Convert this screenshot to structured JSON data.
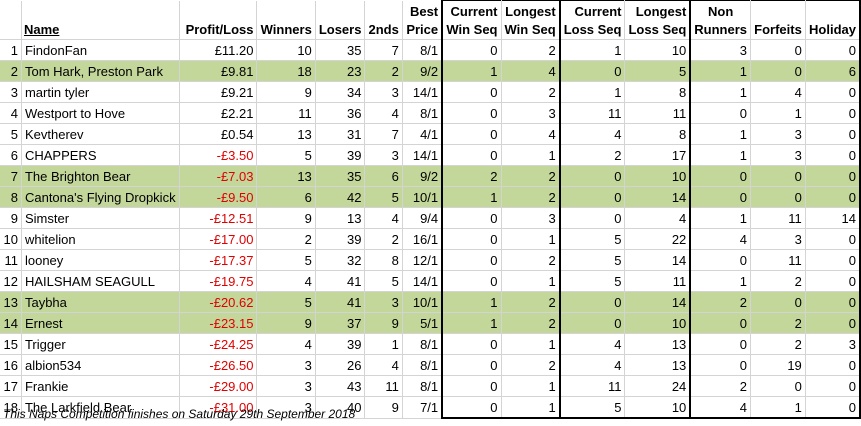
{
  "headers": {
    "rank": "",
    "name": "Name",
    "profit": "Profit/Loss",
    "winners": "Winners",
    "losers": "Losers",
    "seconds": "2nds",
    "best_price": [
      "Best",
      "Price"
    ],
    "cur_win": [
      "Current",
      "Win Seq"
    ],
    "long_win": [
      "Longest",
      "Win Seq"
    ],
    "cur_loss": [
      "Current",
      "Loss Seq"
    ],
    "long_loss": [
      "Longest",
      "Loss Seq"
    ],
    "non_runners": [
      "Non",
      "Runners"
    ],
    "forfeits": "Forfeits",
    "holiday": "Holiday"
  },
  "rows": [
    {
      "rank": "1",
      "name": "FindonFan",
      "profit": "£11.20",
      "winners": "10",
      "losers": "35",
      "seconds": "7",
      "best_price": "8/1",
      "cur_win": "0",
      "long_win": "2",
      "cur_loss": "1",
      "long_loss": "10",
      "non_runners": "3",
      "forfeits": "0",
      "holiday": "0",
      "highlight": false,
      "negative": false
    },
    {
      "rank": "2",
      "name": "Tom Hark, Preston Park",
      "profit": "£9.81",
      "winners": "18",
      "losers": "23",
      "seconds": "2",
      "best_price": "9/2",
      "cur_win": "1",
      "long_win": "4",
      "cur_loss": "0",
      "long_loss": "5",
      "non_runners": "1",
      "forfeits": "0",
      "holiday": "6",
      "highlight": true,
      "negative": false
    },
    {
      "rank": "3",
      "name": "martin tyler",
      "profit": "£9.21",
      "winners": "9",
      "losers": "34",
      "seconds": "3",
      "best_price": "14/1",
      "cur_win": "0",
      "long_win": "2",
      "cur_loss": "1",
      "long_loss": "8",
      "non_runners": "1",
      "forfeits": "4",
      "holiday": "0",
      "highlight": false,
      "negative": false
    },
    {
      "rank": "4",
      "name": "Westport to Hove",
      "profit": "£2.21",
      "winners": "11",
      "losers": "36",
      "seconds": "4",
      "best_price": "8/1",
      "cur_win": "0",
      "long_win": "3",
      "cur_loss": "11",
      "long_loss": "11",
      "non_runners": "0",
      "forfeits": "1",
      "holiday": "0",
      "highlight": false,
      "negative": false
    },
    {
      "rank": "5",
      "name": "Kevtherev",
      "profit": "£0.54",
      "winners": "13",
      "losers": "31",
      "seconds": "7",
      "best_price": "4/1",
      "cur_win": "0",
      "long_win": "4",
      "cur_loss": "4",
      "long_loss": "8",
      "non_runners": "1",
      "forfeits": "3",
      "holiday": "0",
      "highlight": false,
      "negative": false
    },
    {
      "rank": "6",
      "name": "CHAPPERS",
      "profit": "-£3.50",
      "winners": "5",
      "losers": "39",
      "seconds": "3",
      "best_price": "14/1",
      "cur_win": "0",
      "long_win": "1",
      "cur_loss": "2",
      "long_loss": "17",
      "non_runners": "1",
      "forfeits": "3",
      "holiday": "0",
      "highlight": false,
      "negative": true
    },
    {
      "rank": "7",
      "name": "The Brighton Bear",
      "profit": "-£7.03",
      "winners": "13",
      "losers": "35",
      "seconds": "6",
      "best_price": "9/2",
      "cur_win": "2",
      "long_win": "2",
      "cur_loss": "0",
      "long_loss": "10",
      "non_runners": "0",
      "forfeits": "0",
      "holiday": "0",
      "highlight": true,
      "negative": true
    },
    {
      "rank": "8",
      "name": "Cantona's Flying Dropkick",
      "profit": "-£9.50",
      "winners": "6",
      "losers": "42",
      "seconds": "5",
      "best_price": "10/1",
      "cur_win": "1",
      "long_win": "2",
      "cur_loss": "0",
      "long_loss": "14",
      "non_runners": "0",
      "forfeits": "0",
      "holiday": "0",
      "highlight": true,
      "negative": true
    },
    {
      "rank": "9",
      "name": "Simster",
      "profit": "-£12.51",
      "winners": "9",
      "losers": "13",
      "seconds": "4",
      "best_price": "9/4",
      "cur_win": "0",
      "long_win": "3",
      "cur_loss": "0",
      "long_loss": "4",
      "non_runners": "1",
      "forfeits": "11",
      "holiday": "14",
      "highlight": false,
      "negative": true
    },
    {
      "rank": "10",
      "name": "whitelion",
      "profit": "-£17.00",
      "winners": "2",
      "losers": "39",
      "seconds": "2",
      "best_price": "16/1",
      "cur_win": "0",
      "long_win": "1",
      "cur_loss": "5",
      "long_loss": "22",
      "non_runners": "4",
      "forfeits": "3",
      "holiday": "0",
      "highlight": false,
      "negative": true
    },
    {
      "rank": "11",
      "name": "looney",
      "profit": "-£17.37",
      "winners": "5",
      "losers": "32",
      "seconds": "8",
      "best_price": "12/1",
      "cur_win": "0",
      "long_win": "2",
      "cur_loss": "5",
      "long_loss": "14",
      "non_runners": "0",
      "forfeits": "11",
      "holiday": "0",
      "highlight": false,
      "negative": true
    },
    {
      "rank": "12",
      "name": "HAILSHAM SEAGULL",
      "profit": "-£19.75",
      "winners": "4",
      "losers": "41",
      "seconds": "5",
      "best_price": "14/1",
      "cur_win": "0",
      "long_win": "1",
      "cur_loss": "5",
      "long_loss": "11",
      "non_runners": "1",
      "forfeits": "2",
      "holiday": "0",
      "highlight": false,
      "negative": true
    },
    {
      "rank": "13",
      "name": "Taybha",
      "profit": "-£20.62",
      "winners": "5",
      "losers": "41",
      "seconds": "3",
      "best_price": "10/1",
      "cur_win": "1",
      "long_win": "2",
      "cur_loss": "0",
      "long_loss": "14",
      "non_runners": "2",
      "forfeits": "0",
      "holiday": "0",
      "highlight": true,
      "negative": true
    },
    {
      "rank": "14",
      "name": "Ernest",
      "profit": "-£23.15",
      "winners": "9",
      "losers": "37",
      "seconds": "9",
      "best_price": "5/1",
      "cur_win": "1",
      "long_win": "2",
      "cur_loss": "0",
      "long_loss": "10",
      "non_runners": "0",
      "forfeits": "2",
      "holiday": "0",
      "highlight": true,
      "negative": true
    },
    {
      "rank": "15",
      "name": "Trigger",
      "profit": "-£24.25",
      "winners": "4",
      "losers": "39",
      "seconds": "1",
      "best_price": "8/1",
      "cur_win": "0",
      "long_win": "1",
      "cur_loss": "4",
      "long_loss": "13",
      "non_runners": "0",
      "forfeits": "2",
      "holiday": "3",
      "highlight": false,
      "negative": true
    },
    {
      "rank": "16",
      "name": "albion534",
      "profit": "-£26.50",
      "winners": "3",
      "losers": "26",
      "seconds": "4",
      "best_price": "8/1",
      "cur_win": "0",
      "long_win": "2",
      "cur_loss": "4",
      "long_loss": "13",
      "non_runners": "0",
      "forfeits": "19",
      "holiday": "0",
      "highlight": false,
      "negative": true
    },
    {
      "rank": "17",
      "name": "Frankie",
      "profit": "-£29.00",
      "winners": "3",
      "losers": "43",
      "seconds": "11",
      "best_price": "8/1",
      "cur_win": "0",
      "long_win": "1",
      "cur_loss": "11",
      "long_loss": "24",
      "non_runners": "2",
      "forfeits": "0",
      "holiday": "0",
      "highlight": false,
      "negative": true
    },
    {
      "rank": "18",
      "name": "The Larkfield Bear",
      "profit": "-£31.00",
      "winners": "3",
      "losers": "40",
      "seconds": "9",
      "best_price": "7/1",
      "cur_win": "0",
      "long_win": "1",
      "cur_loss": "5",
      "long_loss": "10",
      "non_runners": "4",
      "forfeits": "1",
      "holiday": "0",
      "highlight": false,
      "negative": true
    }
  ],
  "footer": "This Naps Competition finishes on Saturday 29th September 2018",
  "colors": {
    "highlight_row": "#c4d79b",
    "negative_text": "#e00000",
    "grid_line": "#d4d4d4",
    "group_border": "#000000"
  }
}
